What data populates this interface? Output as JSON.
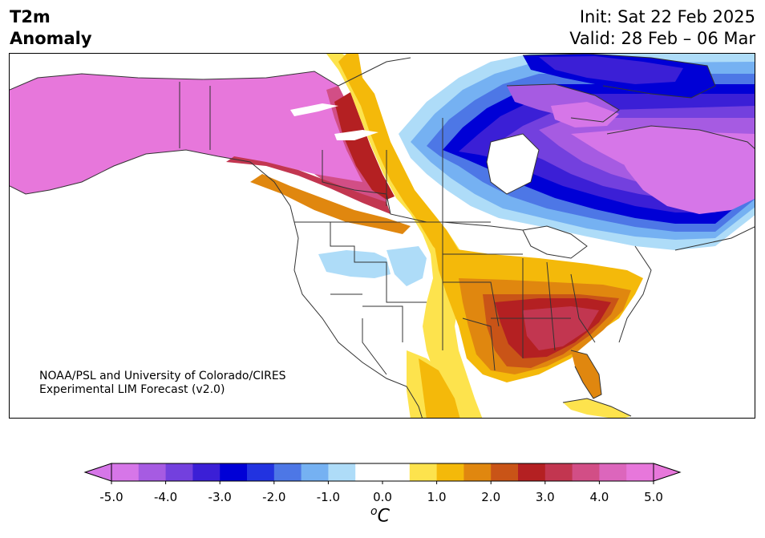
{
  "title": {
    "line1": "T2m",
    "line2": "Anomaly"
  },
  "info": {
    "init": "Init: Sat 22 Feb 2025",
    "valid": "Valid: 28 Feb – 06 Mar"
  },
  "credit": {
    "line1": "NOAA/PSL and University of Colorado/CIRES",
    "line2": "Experimental LIM Forecast (v2.0)"
  },
  "colorbar": {
    "ticks": [
      "-5.0",
      "-4.0",
      "-3.0",
      "-2.0",
      "-1.0",
      "0.0",
      "1.0",
      "2.0",
      "3.0",
      "4.0",
      "5.0"
    ],
    "unit_sup": "o",
    "unit": "C",
    "colors": [
      "#d676e8",
      "#a65be2",
      "#7340de",
      "#3b1fd6",
      "#0000d6",
      "#2233e0",
      "#4d77e6",
      "#75b1f2",
      "#aedcf8",
      "#ffffff",
      "#ffffff",
      "#fde34d",
      "#f4b90a",
      "#e0870f",
      "#c95417",
      "#b42022",
      "#c23650",
      "#d24e86",
      "#dc66bc",
      "#e777db"
    ]
  }
}
